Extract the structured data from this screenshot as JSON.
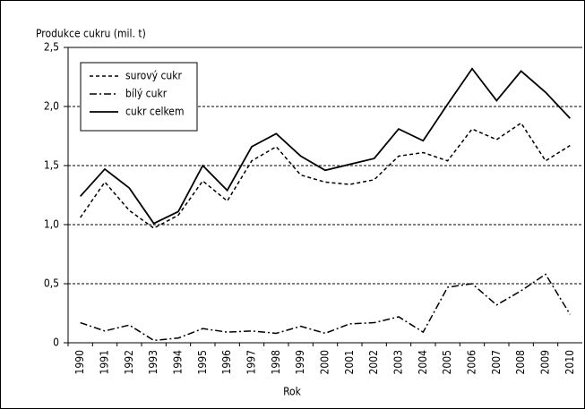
{
  "chart_data": {
    "type": "line",
    "ylabel": "Produkce cukru (mil. t)",
    "xlabel": "Rok",
    "categories": [
      "1990",
      "1991",
      "1992",
      "1993",
      "1994",
      "1995",
      "1996",
      "1997",
      "1998",
      "1999",
      "2000",
      "2001",
      "2002",
      "2003",
      "2004",
      "2005",
      "2006",
      "2007",
      "2008",
      "2009",
      "2010"
    ],
    "series": [
      {
        "name": "surový cukr",
        "color": "#000000",
        "dash": "dashed",
        "values": [
          1.06,
          1.36,
          1.12,
          0.97,
          1.08,
          1.37,
          1.2,
          1.54,
          1.66,
          1.42,
          1.36,
          1.34,
          1.38,
          1.58,
          1.61,
          1.54,
          1.81,
          1.72,
          1.86,
          1.54,
          1.67
        ]
      },
      {
        "name": "bílý cukr",
        "color": "#000000",
        "dash": "dashdot",
        "values": [
          0.17,
          0.1,
          0.15,
          0.02,
          0.04,
          0.12,
          0.09,
          0.1,
          0.08,
          0.14,
          0.08,
          0.16,
          0.17,
          0.22,
          0.09,
          0.47,
          0.5,
          0.32,
          0.44,
          0.58,
          0.24
        ]
      },
      {
        "name": "cukr celkem",
        "color": "#000000",
        "dash": "solid",
        "values": [
          1.24,
          1.47,
          1.31,
          1.01,
          1.11,
          1.5,
          1.29,
          1.66,
          1.77,
          1.58,
          1.46,
          1.51,
          1.56,
          1.81,
          1.71,
          2.02,
          2.32,
          2.05,
          2.3,
          2.12,
          1.9
        ]
      }
    ],
    "ylim": [
      0,
      2.5
    ],
    "yticks": [
      0,
      {
        "value": 0.5,
        "label": "0,5"
      },
      {
        "value": 1.0,
        "label": "1,0"
      },
      {
        "value": 1.5,
        "label": "1,5"
      },
      {
        "value": 2.0,
        "label": "2,0"
      },
      {
        "value": 2.5,
        "label": "2,5"
      }
    ],
    "grid": true,
    "legend": "upper left"
  }
}
